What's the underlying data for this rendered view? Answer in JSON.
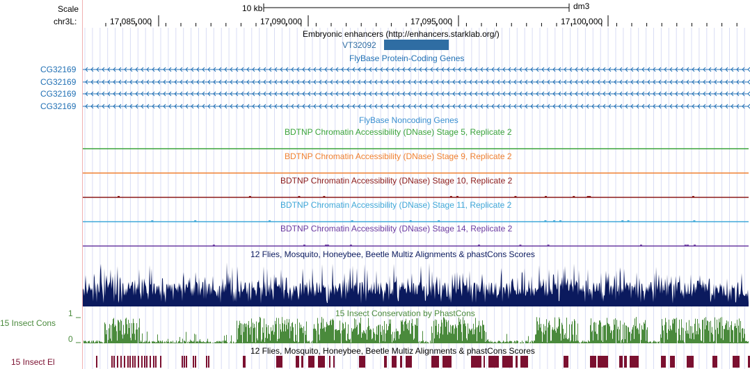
{
  "header": {
    "scale_label": "Scale",
    "chrom_label": "chr3L:",
    "scalebar_label": "10 kb",
    "assembly": "dm3",
    "positions": [
      "17,085,000",
      "17,090,000",
      "17,095,000",
      "17,100,000"
    ]
  },
  "tracks": {
    "enhancers": {
      "title": "Embryonic enhancers (http://enhancers.starklab.org/)",
      "item_label": "VT32092",
      "color": "#2f6da3"
    },
    "flybase_protein": {
      "title": "FlyBase Protein-Coding Genes",
      "gene_labels": [
        "CG32169",
        "CG32169",
        "CG32169",
        "CG32169"
      ],
      "color": "#1f6fb4"
    },
    "flybase_noncoding": {
      "title": "FlyBase Noncoding Genes",
      "color": "#3a8fd0"
    },
    "dnase": [
      {
        "title": "BDTNP Chromatin Accessibility (DNase) Stage 5, Replicate 2",
        "color": "#3aa33a"
      },
      {
        "title": "BDTNP Chromatin Accessibility (DNase) Stage 9, Replicate 2",
        "color": "#f08030"
      },
      {
        "title": "BDTNP Chromatin Accessibility (DNase) Stage 10, Replicate 2",
        "color": "#8b1a1a"
      },
      {
        "title": "BDTNP Chromatin Accessibility (DNase) Stage 11, Replicate 2",
        "color": "#40a8d8"
      },
      {
        "title": "BDTNP Chromatin Accessibility (DNase) Stage 14, Replicate 2",
        "color": "#6a3aa0"
      }
    ],
    "multiz": {
      "title": "12 Flies, Mosquito, Honeybee, Beetle Multiz Alignments & phastCons Scores",
      "color": "#0b1a5e"
    },
    "insect_cons": {
      "title": "15 Insect Conservation by PhastCons",
      "side_label": "15 Insect Cons",
      "y_max_label": "1",
      "y_min_label": "0",
      "color": "#4a8a3c"
    },
    "insect_el": {
      "title": "12 Flies, Mosquito, Honeybee, Beetle Multiz Alignments & phastCons Scores",
      "side_label": "15 Insect El",
      "color": "#7b1030"
    }
  }
}
